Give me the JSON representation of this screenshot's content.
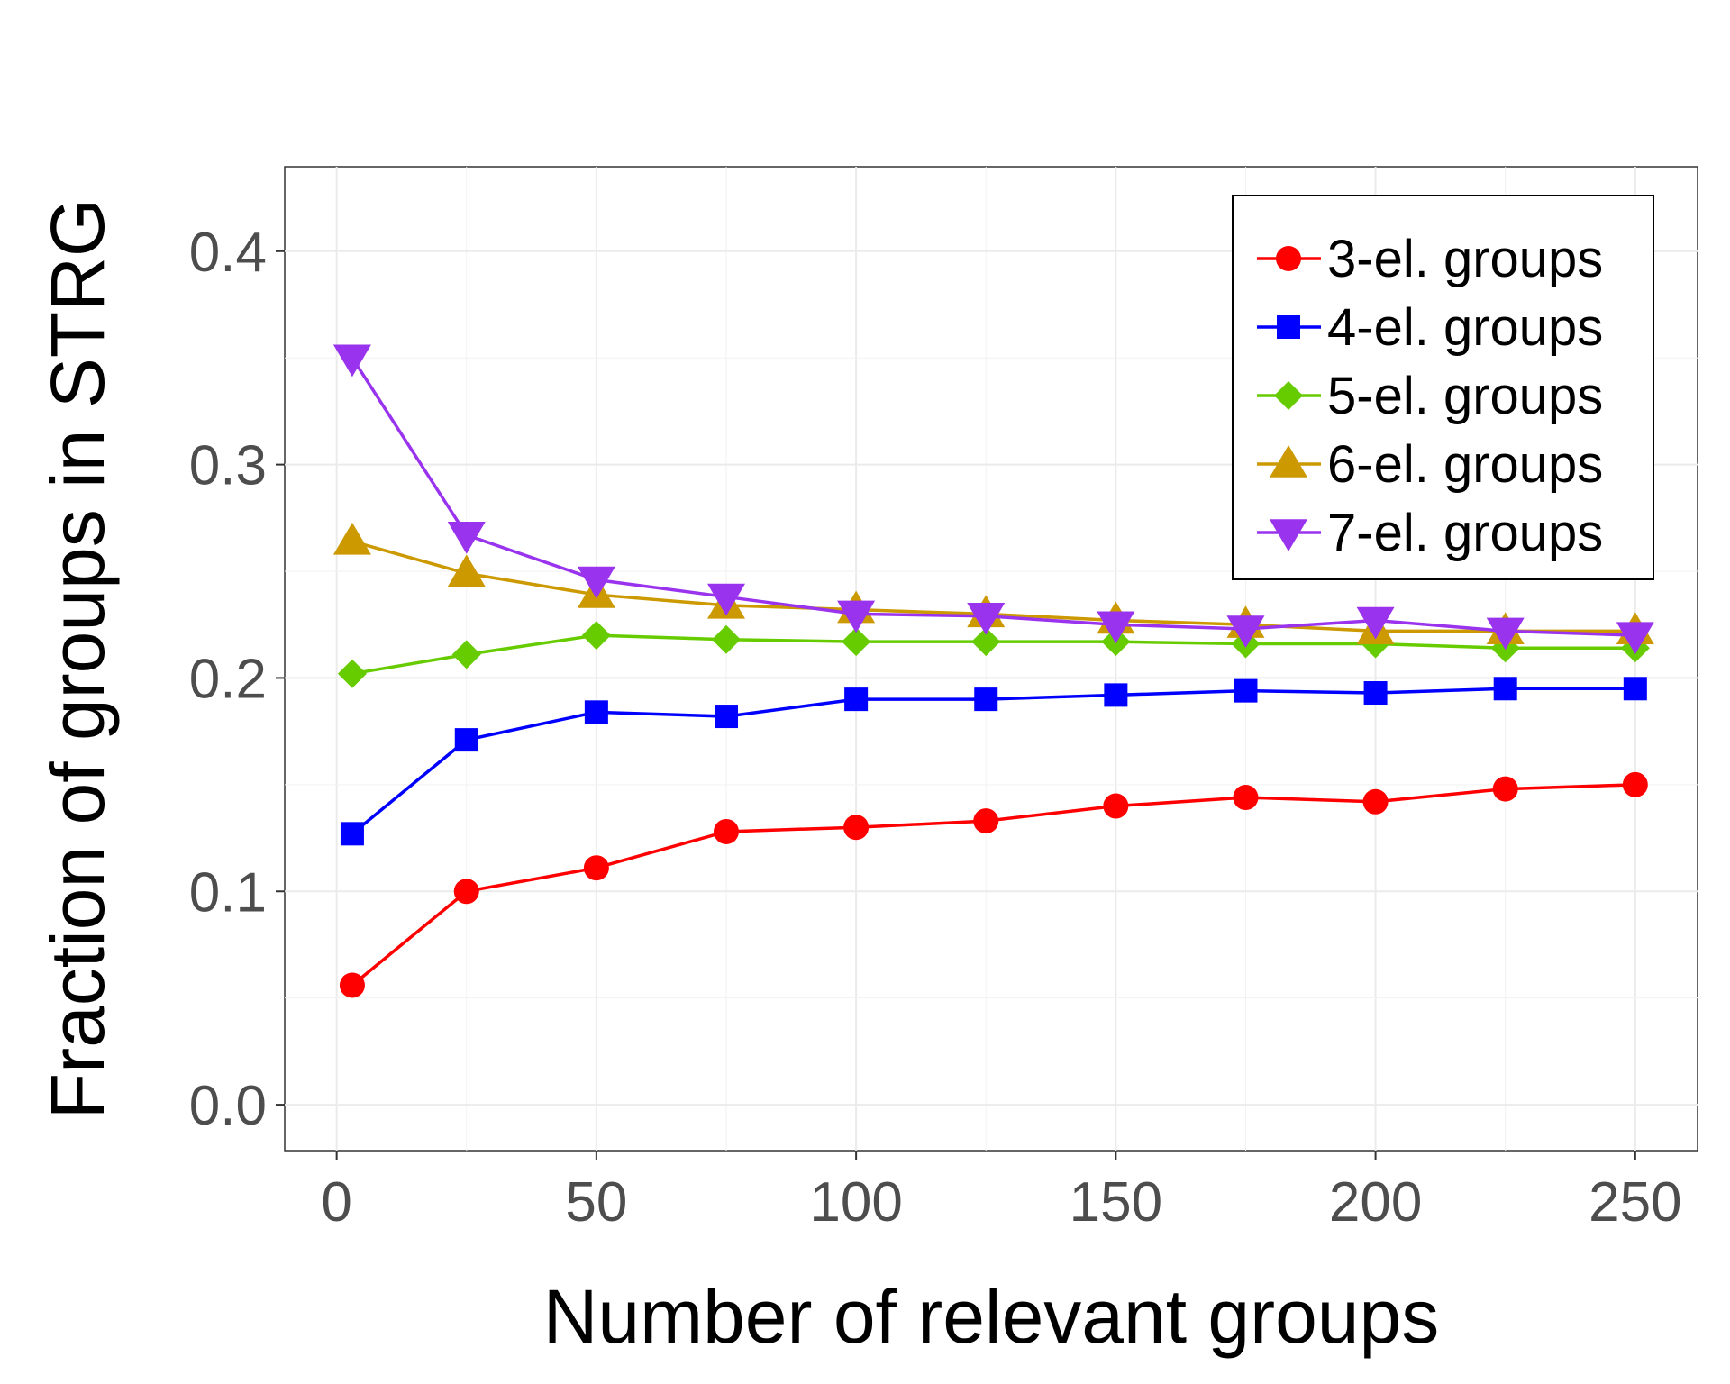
{
  "chart_data": {
    "type": "line",
    "title": "",
    "xlabel": "Number of relevant groups",
    "ylabel": "Fraction of groups in STRG",
    "xlim": [
      -10,
      262
    ],
    "ylim": [
      -0.0215,
      0.4396
    ],
    "x_ticks": [
      0,
      50,
      100,
      150,
      200,
      250
    ],
    "y_ticks": [
      0.0,
      0.1,
      0.2,
      0.3,
      0.4
    ],
    "x_tick_labels": [
      "0",
      "50",
      "100",
      "150",
      "200",
      "250"
    ],
    "y_tick_labels": [
      "0.0",
      "0.1",
      "0.2",
      "0.3",
      "0.4"
    ],
    "grid": true,
    "legend_position": "top-right",
    "x": [
      3,
      25,
      50,
      75,
      100,
      125,
      150,
      175,
      200,
      225,
      250
    ],
    "series": [
      {
        "name": "3-el. groups",
        "color": "#ff0000",
        "marker": "circle",
        "values": [
          0.056,
          0.1,
          0.111,
          0.128,
          0.13,
          0.133,
          0.14,
          0.144,
          0.142,
          0.148,
          0.15
        ]
      },
      {
        "name": "4-el. groups",
        "color": "#0000ff",
        "marker": "square",
        "values": [
          0.127,
          0.171,
          0.184,
          0.182,
          0.19,
          0.19,
          0.192,
          0.194,
          0.193,
          0.195,
          0.195
        ]
      },
      {
        "name": "5-el. groups",
        "color": "#66cc00",
        "marker": "diamond",
        "values": [
          0.202,
          0.211,
          0.22,
          0.218,
          0.217,
          0.217,
          0.217,
          0.216,
          0.216,
          0.214,
          0.214
        ]
      },
      {
        "name": "6-el. groups",
        "color": "#cc9900",
        "marker": "triangle-up",
        "values": [
          0.264,
          0.249,
          0.239,
          0.234,
          0.232,
          0.23,
          0.227,
          0.225,
          0.222,
          0.222,
          0.222
        ]
      },
      {
        "name": "7-el. groups",
        "color": "#9933ee",
        "marker": "triangle-down",
        "values": [
          0.35,
          0.267,
          0.246,
          0.238,
          0.23,
          0.229,
          0.225,
          0.223,
          0.227,
          0.222,
          0.22
        ]
      }
    ]
  }
}
